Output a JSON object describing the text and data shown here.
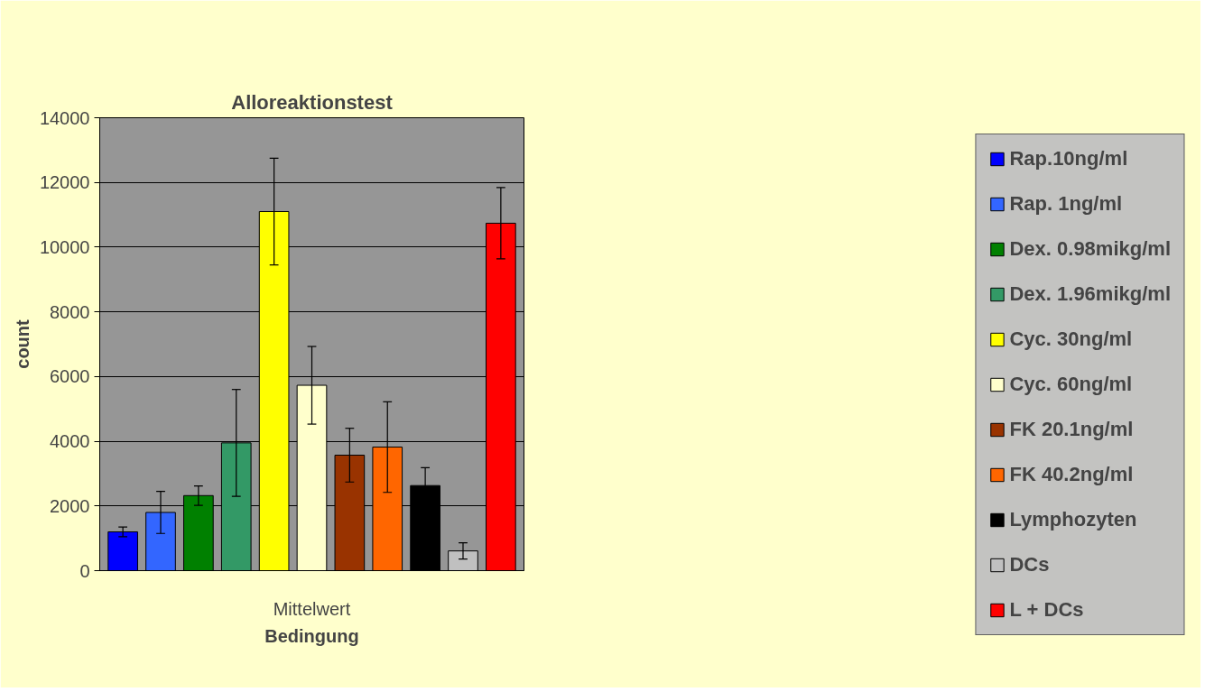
{
  "chart_data": {
    "type": "bar",
    "title": "Alloreaktionstest",
    "xlabel": "Bedingung",
    "ylabel": "count",
    "categories": [
      "Mittelwert"
    ],
    "series": [
      {
        "name": "Rap.10ng/ml",
        "color": "#0000ff",
        "values": [
          1200
        ],
        "errors": [
          150
        ]
      },
      {
        "name": "Rap. 1ng/ml",
        "color": "#3366ff",
        "values": [
          1800
        ],
        "errors": [
          650
        ]
      },
      {
        "name": "Dex. 0.98mikg/ml",
        "color": "#008000",
        "values": [
          2320
        ],
        "errors": [
          300
        ]
      },
      {
        "name": "Dex. 1.96mikg/ml",
        "color": "#339966",
        "values": [
          3950
        ],
        "errors": [
          1650
        ]
      },
      {
        "name": "Cyc. 30ng/ml",
        "color": "#ffff00",
        "values": [
          11100
        ],
        "errors": [
          1650
        ]
      },
      {
        "name": "Cyc. 60ng/ml",
        "color": "#ffffcc",
        "values": [
          5730
        ],
        "errors": [
          1200
        ]
      },
      {
        "name": "FK 20.1ng/ml",
        "color": "#993300",
        "values": [
          3570
        ],
        "errors": [
          830
        ]
      },
      {
        "name": "FK 40.2ng/ml",
        "color": "#ff6600",
        "values": [
          3820
        ],
        "errors": [
          1400
        ]
      },
      {
        "name": "Lymphozyten",
        "color": "#000000",
        "values": [
          2630
        ],
        "errors": [
          550
        ]
      },
      {
        "name": "DCs",
        "color": "#c0c0c0",
        "values": [
          610
        ],
        "errors": [
          250
        ]
      },
      {
        "name": "L + DCs",
        "color": "#ff0000",
        "values": [
          10740
        ],
        "errors": [
          1100
        ]
      }
    ],
    "ylim": [
      0,
      14000
    ],
    "yticks": [
      0,
      2000,
      4000,
      6000,
      8000,
      10000,
      12000,
      14000
    ],
    "grid": "y",
    "legend": "right"
  }
}
